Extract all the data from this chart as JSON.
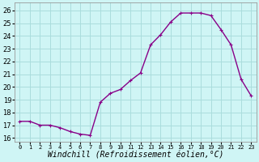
{
  "x": [
    0,
    1,
    2,
    3,
    4,
    5,
    6,
    7,
    8,
    9,
    10,
    11,
    12,
    13,
    14,
    15,
    16,
    17,
    18,
    19,
    20,
    21,
    22,
    23
  ],
  "y": [
    17.3,
    17.3,
    17.0,
    17.0,
    16.8,
    16.5,
    16.3,
    16.2,
    18.8,
    19.5,
    19.8,
    20.5,
    21.1,
    23.3,
    24.1,
    25.1,
    25.8,
    25.8,
    25.8,
    25.6,
    24.5,
    23.3,
    20.6,
    19.3
  ],
  "line_color": "#880088",
  "marker": "+",
  "markersize": 3.5,
  "linewidth": 1.0,
  "background_color": "#cff5f5",
  "grid_color": "#aadddd",
  "xlabel": "Windchill (Refroidissement éolien,°C)",
  "xlabel_fontsize": 7,
  "ylabel_ticks": [
    16,
    17,
    18,
    19,
    20,
    21,
    22,
    23,
    24,
    25,
    26
  ],
  "xlim": [
    -0.5,
    23.5
  ],
  "ylim": [
    15.7,
    26.6
  ],
  "xtick_labels": [
    "0",
    "1",
    "2",
    "3",
    "4",
    "5",
    "6",
    "7",
    "8",
    "9",
    "10",
    "11",
    "12",
    "13",
    "14",
    "15",
    "16",
    "17",
    "18",
    "19",
    "20",
    "21",
    "22",
    "23"
  ]
}
